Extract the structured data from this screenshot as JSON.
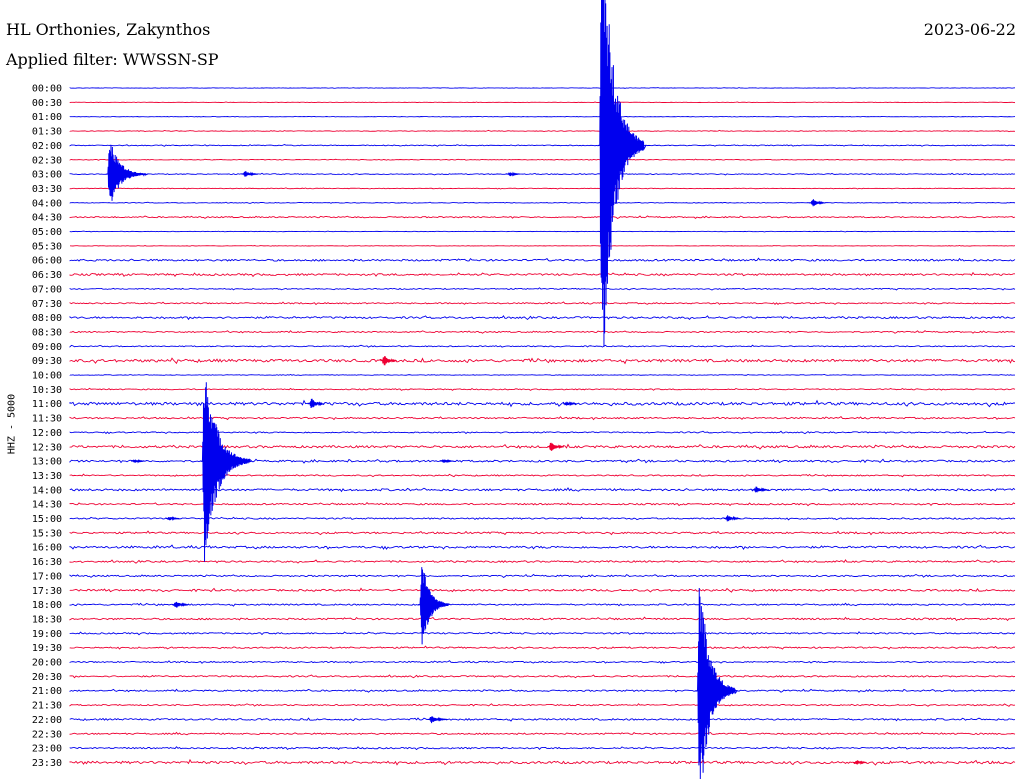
{
  "header": {
    "station": "HL Orthonies, Zakynthos",
    "filter": "Applied filter: WWSSN-SP",
    "date": "2023-06-22",
    "channel": "HHZ - 5000"
  },
  "colors": {
    "trace_a": "#0000ee",
    "trace_b": "#ee0033",
    "label": "#000000",
    "background": "#ffffff"
  },
  "chart_data": {
    "type": "line",
    "title": "HL Orthonies, Zakynthos",
    "subtitle": "Applied filter: WWSSN-SP",
    "ylabel": "HHZ - 5000",
    "date": "2023-06-22",
    "x_unit": "minutes into 30-minute row",
    "x_range": [
      0,
      30
    ],
    "row_labels": [
      "00:00",
      "00:30",
      "01:00",
      "01:30",
      "02:00",
      "02:30",
      "03:00",
      "03:30",
      "04:00",
      "04:30",
      "05:00",
      "05:30",
      "06:00",
      "06:30",
      "07:00",
      "07:30",
      "08:00",
      "08:30",
      "09:00",
      "09:30",
      "10:00",
      "10:30",
      "11:00",
      "11:30",
      "12:00",
      "12:30",
      "13:00",
      "13:30",
      "14:00",
      "14:30",
      "15:00",
      "15:30",
      "16:00",
      "16:30",
      "17:00",
      "17:30",
      "18:00",
      "18:30",
      "19:00",
      "19:30",
      "20:00",
      "20:30",
      "21:00",
      "21:30",
      "22:00",
      "22:30",
      "23:00",
      "23:30"
    ],
    "row_colors": [
      "trace_a",
      "trace_b"
    ],
    "noise_levels": [
      0.2,
      0.2,
      0.2,
      0.3,
      0.4,
      0.3,
      0.4,
      0.3,
      0.3,
      0.6,
      0.2,
      0.2,
      0.9,
      0.9,
      0.5,
      0.6,
      0.9,
      0.6,
      0.5,
      1.3,
      0.3,
      0.5,
      1.4,
      0.7,
      0.6,
      1.1,
      0.9,
      0.6,
      1.0,
      0.7,
      0.7,
      0.8,
      1.0,
      0.8,
      0.7,
      0.9,
      0.7,
      0.8,
      0.7,
      0.7,
      0.6,
      0.7,
      0.7,
      0.6,
      0.8,
      0.7,
      0.7,
      1.2
    ],
    "events": [
      {
        "row": 4,
        "minute": 16.8,
        "amplitude": 300,
        "duration": 1.4
      },
      {
        "row": 6,
        "minute": 1.2,
        "amplitude": 45,
        "duration": 1.2
      },
      {
        "row": 6,
        "minute": 5.5,
        "amplitude": 6,
        "duration": 0.4
      },
      {
        "row": 6,
        "minute": 13.9,
        "amplitude": 4,
        "duration": 0.3
      },
      {
        "row": 8,
        "minute": 23.5,
        "amplitude": 7,
        "duration": 0.4
      },
      {
        "row": 19,
        "minute": 9.9,
        "amplitude": 10,
        "duration": 0.4
      },
      {
        "row": 22,
        "minute": 7.6,
        "amplitude": 10,
        "duration": 0.4
      },
      {
        "row": 22,
        "minute": 15.7,
        "amplitude": 4,
        "duration": 0.3
      },
      {
        "row": 25,
        "minute": 15.2,
        "amplitude": 10,
        "duration": 0.4
      },
      {
        "row": 26,
        "minute": 4.2,
        "amplitude": 125,
        "duration": 1.5
      },
      {
        "row": 26,
        "minute": 2.0,
        "amplitude": 4,
        "duration": 0.3
      },
      {
        "row": 26,
        "minute": 11.8,
        "amplitude": 4,
        "duration": 0.3
      },
      {
        "row": 28,
        "minute": 21.7,
        "amplitude": 6,
        "duration": 0.4
      },
      {
        "row": 30,
        "minute": 3.1,
        "amplitude": 4,
        "duration": 0.3
      },
      {
        "row": 30,
        "minute": 20.8,
        "amplitude": 6,
        "duration": 0.4
      },
      {
        "row": 36,
        "minute": 11.1,
        "amplitude": 60,
        "duration": 0.9
      },
      {
        "row": 36,
        "minute": 3.3,
        "amplitude": 7,
        "duration": 0.4
      },
      {
        "row": 42,
        "minute": 19.9,
        "amplitude": 150,
        "duration": 1.2
      },
      {
        "row": 44,
        "minute": 11.4,
        "amplitude": 6,
        "duration": 0.5
      },
      {
        "row": 47,
        "minute": 24.9,
        "amplitude": 5,
        "duration": 0.3
      }
    ]
  }
}
